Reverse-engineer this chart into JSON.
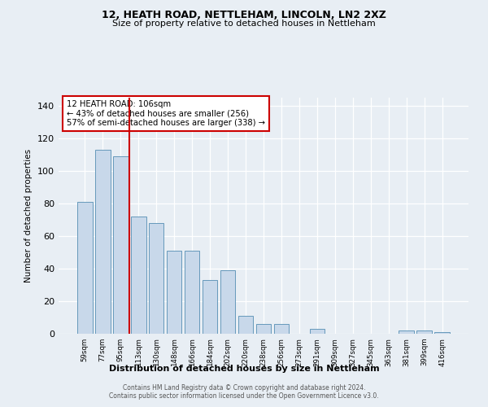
{
  "title": "12, HEATH ROAD, NETTLEHAM, LINCOLN, LN2 2XZ",
  "subtitle": "Size of property relative to detached houses in Nettleham",
  "xlabel": "Distribution of detached houses by size in Nettleham",
  "ylabel": "Number of detached properties",
  "bin_labels": [
    "59sqm",
    "77sqm",
    "95sqm",
    "113sqm",
    "130sqm",
    "148sqm",
    "166sqm",
    "184sqm",
    "202sqm",
    "220sqm",
    "238sqm",
    "256sqm",
    "273sqm",
    "291sqm",
    "309sqm",
    "327sqm",
    "345sqm",
    "363sqm",
    "381sqm",
    "399sqm",
    "416sqm"
  ],
  "bar_values": [
    81,
    113,
    109,
    72,
    68,
    51,
    51,
    33,
    39,
    11,
    6,
    6,
    0,
    3,
    0,
    0,
    0,
    0,
    2,
    2,
    1
  ],
  "bar_color": "#c8d8ea",
  "bar_edge_color": "#6699bb",
  "vline_x_index": 2.5,
  "annotation_title": "12 HEATH ROAD: 106sqm",
  "annotation_line1": "← 43% of detached houses are smaller (256)",
  "annotation_line2": "57% of semi-detached houses are larger (338) →",
  "annotation_box_color": "#cc0000",
  "ylim": [
    0,
    145
  ],
  "yticks": [
    0,
    20,
    40,
    60,
    80,
    100,
    120,
    140
  ],
  "footer1": "Contains HM Land Registry data © Crown copyright and database right 2024.",
  "footer2": "Contains public sector information licensed under the Open Government Licence v3.0.",
  "bg_color": "#e8eef4",
  "plot_bg_color": "#e8eef4"
}
